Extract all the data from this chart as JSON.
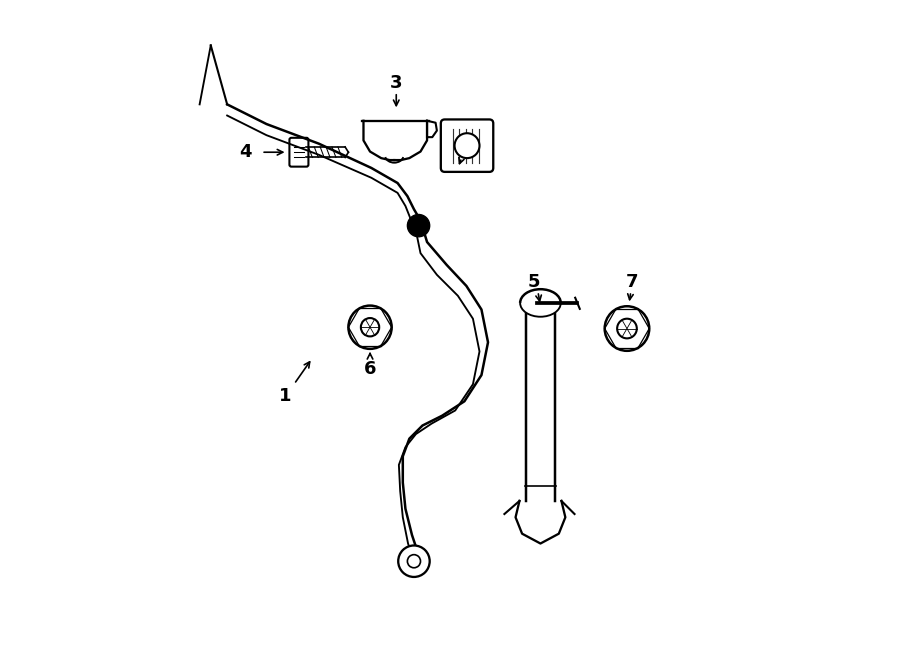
{
  "bg_color": "#ffffff",
  "line_color": "#000000",
  "line_width": 1.5,
  "fig_width": 9.0,
  "fig_height": 6.61,
  "dpi": 100
}
